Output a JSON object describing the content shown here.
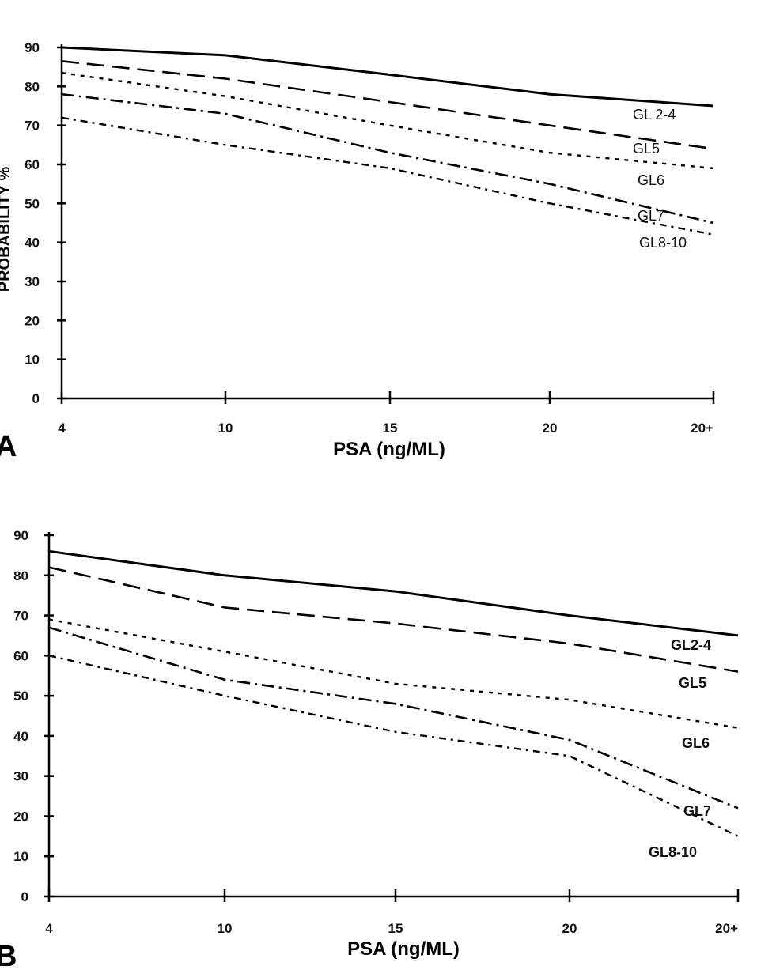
{
  "chart_data": [
    {
      "panel": "A",
      "type": "line",
      "x": [
        "4",
        "10",
        "15",
        "20",
        "20+"
      ],
      "xlabel": "PSA (ng/ML)",
      "ylabel_fragment": "PROBABILITY %",
      "yticks": [
        "0",
        "10",
        "20",
        "30",
        "40",
        "50",
        "60",
        "70",
        "80",
        "90"
      ],
      "ylim": [
        0,
        90
      ],
      "grid": false,
      "series": [
        {
          "name": "GL 2-4",
          "style": "solid",
          "values": [
            90,
            88,
            83,
            78,
            75
          ]
        },
        {
          "name": "GL5",
          "style": "long-dash",
          "values": [
            86.5,
            82,
            76,
            70,
            64
          ]
        },
        {
          "name": "GL6",
          "style": "short-dash",
          "values": [
            83.5,
            77.5,
            70,
            63,
            59
          ]
        },
        {
          "name": "GL7",
          "style": "dash-dot",
          "values": [
            78,
            73,
            63,
            55,
            45
          ]
        },
        {
          "name": "GL8-10",
          "style": "dash-dot-fine",
          "values": [
            72,
            65,
            59,
            50,
            42
          ]
        }
      ]
    },
    {
      "panel": "B",
      "type": "line",
      "x": [
        "4",
        "10",
        "15",
        "20",
        "20+"
      ],
      "xlabel": "PSA (ng/ML)",
      "yticks": [
        "0",
        "10",
        "20",
        "30",
        "40",
        "50",
        "60",
        "70",
        "80",
        "90"
      ],
      "ylim": [
        0,
        90
      ],
      "grid": false,
      "series": [
        {
          "name": "GL2-4",
          "style": "solid",
          "values": [
            86,
            80,
            76,
            70,
            65
          ]
        },
        {
          "name": "GL5",
          "style": "long-dash",
          "values": [
            82,
            72,
            68,
            63,
            56
          ]
        },
        {
          "name": "GL6",
          "style": "short-dash",
          "values": [
            69,
            61,
            53,
            49,
            42
          ]
        },
        {
          "name": "GL7",
          "style": "dash-dot",
          "values": [
            67,
            54,
            48,
            39,
            22
          ]
        },
        {
          "name": "GL8-10",
          "style": "dash-dot-fine",
          "values": [
            60,
            50,
            41,
            35,
            15
          ]
        }
      ]
    }
  ]
}
